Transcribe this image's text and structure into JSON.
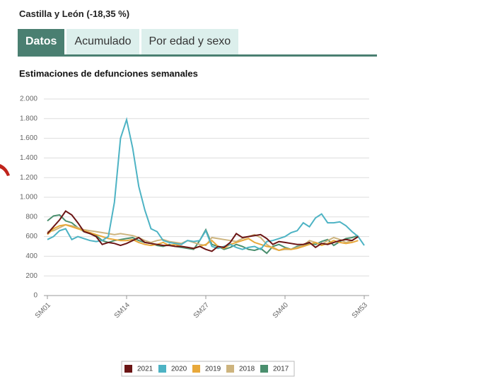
{
  "header": {
    "title": "Castilla y León (-18,35 %)",
    "tabs": [
      "Datos",
      "Acumulado",
      "Por edad y sexo"
    ]
  },
  "chart_data": {
    "type": "line",
    "title": "Estimaciones de defunciones semanales",
    "categories": [
      "SM01",
      null,
      null,
      null,
      null,
      null,
      null,
      null,
      null,
      null,
      null,
      null,
      null,
      "SM14",
      null,
      null,
      null,
      null,
      null,
      null,
      null,
      null,
      null,
      null,
      null,
      null,
      "SM27",
      null,
      null,
      null,
      null,
      null,
      null,
      null,
      null,
      null,
      null,
      null,
      null,
      "SM40",
      null,
      null,
      null,
      null,
      null,
      null,
      null,
      null,
      null,
      null,
      null,
      null,
      "SM53"
    ],
    "ylim": [
      0,
      2000
    ],
    "yticks": [
      0,
      200,
      400,
      600,
      800,
      {
        "value": 1000,
        "label": "1.000"
      },
      {
        "value": 1200,
        "label": "1.200"
      },
      {
        "value": 1400,
        "label": "1.400"
      },
      {
        "value": 1600,
        "label": "1.600"
      },
      {
        "value": 1800,
        "label": "1.800"
      },
      {
        "value": 2000,
        "label": "2.000"
      }
    ],
    "grid": true,
    "series": [
      {
        "name": "2021",
        "color": "#6b1515",
        "values": [
          630,
          700,
          770,
          860,
          820,
          740,
          650,
          630,
          600,
          520,
          540,
          530,
          510,
          530,
          560,
          590,
          540,
          530,
          520,
          510,
          510,
          500,
          500,
          490,
          480,
          500,
          470,
          450,
          500,
          490,
          540,
          630,
          590,
          600,
          610,
          620,
          580,
          520,
          550,
          540,
          530,
          520,
          520,
          540,
          490,
          530,
          520,
          540,
          560,
          570,
          560,
          600,
          null
        ]
      },
      {
        "name": "2020",
        "color": "#4db3c4",
        "values": [
          570,
          600,
          660,
          680,
          570,
          600,
          580,
          560,
          550,
          560,
          600,
          950,
          1600,
          1790,
          1500,
          1110,
          870,
          680,
          650,
          560,
          540,
          530,
          520,
          560,
          550,
          560,
          660,
          500,
          480,
          500,
          520,
          490,
          470,
          490,
          500,
          470,
          550,
          560,
          580,
          600,
          640,
          660,
          740,
          700,
          790,
          830,
          740,
          740,
          750,
          710,
          650,
          600,
          510
        ]
      },
      {
        "name": "2019",
        "color": "#e8a83a",
        "values": [
          620,
          680,
          710,
          720,
          700,
          680,
          660,
          640,
          620,
          600,
          580,
          570,
          560,
          560,
          570,
          540,
          520,
          510,
          520,
          540,
          510,
          520,
          500,
          490,
          480,
          500,
          520,
          560,
          500,
          480,
          520,
          540,
          560,
          580,
          540,
          520,
          500,
          490,
          460,
          480,
          470,
          480,
          500,
          520,
          540,
          510,
          530,
          560,
          540,
          530,
          540,
          560,
          null
        ]
      },
      {
        "name": "2018",
        "color": "#cdb47e",
        "values": [
          650,
          660,
          690,
          720,
          710,
          690,
          670,
          660,
          650,
          640,
          630,
          620,
          630,
          620,
          610,
          590,
          560,
          540,
          560,
          570,
          550,
          540,
          530,
          560,
          540,
          520,
          510,
          590,
          580,
          570,
          560,
          550,
          580,
          600,
          620,
          590,
          520,
          480,
          460,
          470,
          470,
          490,
          510,
          560,
          540,
          520,
          560,
          590,
          570,
          540,
          560,
          600,
          null
        ]
      },
      {
        "name": "2017",
        "color": "#4a8f6e",
        "values": [
          760,
          810,
          820,
          760,
          740,
          690,
          650,
          630,
          610,
          560,
          540,
          560,
          570,
          580,
          590,
          560,
          540,
          530,
          510,
          500,
          520,
          500,
          490,
          480,
          470,
          560,
          670,
          520,
          500,
          470,
          490,
          520,
          500,
          470,
          460,
          480,
          430,
          500,
          520,
          490,
          470,
          500,
          510,
          530,
          520,
          550,
          570,
          510,
          550,
          580,
          590,
          610,
          null
        ]
      }
    ]
  }
}
